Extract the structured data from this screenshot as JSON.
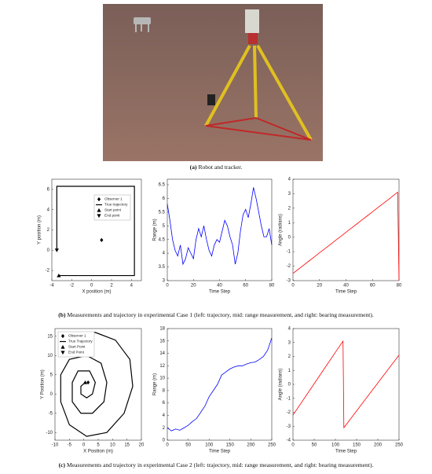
{
  "captions": [
    {
      "label": "(a)",
      "text": "Robot and tracker."
    },
    {
      "label": "(b)",
      "text": "Measurements and trajectory in experimental Case 1 (left: trajectory, mid: range measurement, and right: bearing measurement)."
    },
    {
      "label": "(c)",
      "text": "Measurements and trajectory in experimental Case 2 (left: trajectory, mid: range measurement, and right: bearing measurement)."
    }
  ],
  "chart_data": [
    {
      "type": "line",
      "xlabel": "X position (m)",
      "ylabel": "Y position (m)",
      "xlim": [
        -4,
        5
      ],
      "xticks": [
        -4,
        -2,
        0,
        2,
        4
      ],
      "ylim": [
        -3,
        7
      ],
      "yticks": [
        -2,
        0,
        2,
        4,
        6
      ],
      "legend": "upper right",
      "series": [
        {
          "name": "Observer 1",
          "color": "#000000",
          "marker": "diamond",
          "x": [
            1
          ],
          "values": [
            1
          ]
        },
        {
          "name": "True trajectory",
          "color": "#000000",
          "x": [
            -3.3,
            4.3,
            4.3,
            -3.5,
            -3.5
          ],
          "values": [
            -2.5,
            -2.5,
            6.3,
            6.3,
            0
          ]
        },
        {
          "name": "Start point",
          "color": "#000000",
          "marker": "triangle-up",
          "x": [
            -3.3
          ],
          "values": [
            -2.5
          ]
        },
        {
          "name": "End point",
          "color": "#000000",
          "marker": "triangle-down",
          "x": [
            -3.5
          ],
          "values": [
            0
          ]
        }
      ]
    },
    {
      "type": "line",
      "xlabel": "Time Step",
      "ylabel": "Range (m)",
      "color": "#0000ff",
      "xlim": [
        0,
        80
      ],
      "xticks": [
        0,
        20,
        40,
        60,
        80
      ],
      "ylim": [
        3,
        6.7
      ],
      "yticks": [
        3,
        3.5,
        4,
        4.5,
        5,
        5.5,
        6,
        6.5
      ],
      "x": [
        0,
        2,
        4,
        6,
        8,
        10,
        12,
        14,
        16,
        18,
        20,
        22,
        24,
        26,
        28,
        30,
        32,
        34,
        36,
        38,
        40,
        42,
        44,
        46,
        48,
        50,
        52,
        54,
        56,
        58,
        60,
        62,
        64,
        66,
        68,
        70,
        72,
        74,
        76,
        78,
        80
      ],
      "values": [
        5.8,
        5.2,
        4.5,
        4.1,
        3.9,
        4.3,
        3.6,
        3.8,
        4.2,
        4.0,
        3.8,
        4.5,
        4.9,
        4.6,
        5.0,
        4.5,
        4.1,
        3.9,
        4.3,
        4.5,
        4.4,
        4.8,
        5.2,
        5.0,
        4.6,
        4.3,
        3.6,
        4.0,
        4.8,
        5.4,
        5.6,
        5.3,
        5.8,
        6.4,
        6.0,
        5.5,
        5.0,
        4.6,
        4.6,
        4.9,
        4.3
      ]
    },
    {
      "type": "line",
      "xlabel": "Time Step",
      "ylabel": "Angle (radians)",
      "color": "#ff0000",
      "xlim": [
        0,
        80
      ],
      "xticks": [
        0,
        20,
        40,
        60,
        80
      ],
      "ylim": [
        -3,
        4
      ],
      "yticks": [
        -3,
        -2,
        -1,
        0,
        1,
        2,
        3,
        4
      ],
      "x": [
        0,
        4,
        8,
        12,
        16,
        20,
        24,
        28,
        32,
        36,
        40,
        44,
        48,
        52,
        56,
        60,
        64,
        68,
        72,
        76,
        79,
        80
      ],
      "values": [
        -2.5,
        -2.22,
        -1.93,
        -1.65,
        -1.37,
        -1.08,
        -0.8,
        -0.52,
        -0.23,
        0.05,
        0.34,
        0.62,
        0.9,
        1.19,
        1.47,
        1.75,
        2.04,
        2.32,
        2.6,
        2.89,
        3.1,
        -3.0
      ]
    },
    {
      "type": "line",
      "xlabel": "X Position (m)",
      "ylabel": "Y Position (m)",
      "xlim": [
        -10,
        20
      ],
      "xticks": [
        -10,
        -5,
        0,
        5,
        10,
        15,
        20
      ],
      "ylim": [
        -12,
        17
      ],
      "yticks": [
        -10,
        -5,
        0,
        5,
        10,
        15
      ],
      "legend": "upper left",
      "series": [
        {
          "name": "Observer 1",
          "color": "#000000",
          "marker": "diamond",
          "x": [
            1.5
          ],
          "values": [
            3
          ]
        },
        {
          "name": "True Trajectory",
          "color": "#000000",
          "x": [
            0.5,
            -1,
            -1,
            1,
            3,
            4,
            2,
            -2,
            -4,
            -4,
            -1,
            3,
            7,
            8,
            6,
            1,
            -5,
            -8,
            -8,
            -5,
            1,
            8,
            14,
            17,
            16,
            11,
            4,
            -3,
            -8
          ],
          "values": [
            3,
            2,
            0,
            -1,
            0,
            3,
            6,
            6,
            3,
            -2,
            -5,
            -5,
            -2,
            3,
            8,
            10,
            9,
            5,
            -2,
            -8,
            -11,
            -10,
            -5,
            2,
            9,
            14,
            16,
            16,
            15
          ]
        },
        {
          "name": "Start Point",
          "color": "#000000",
          "marker": "triangle-up",
          "x": [
            0.5
          ],
          "values": [
            3
          ]
        },
        {
          "name": "End Point",
          "color": "#000000",
          "marker": "triangle-down",
          "x": [
            -8
          ],
          "values": [
            15
          ]
        }
      ]
    },
    {
      "type": "line",
      "xlabel": "Time Step",
      "ylabel": "Range (m)",
      "color": "#0000ff",
      "xlim": [
        0,
        250
      ],
      "xticks": [
        0,
        50,
        100,
        150,
        200,
        250
      ],
      "ylim": [
        0,
        18
      ],
      "yticks": [
        0,
        2,
        4,
        6,
        8,
        10,
        12,
        14,
        16,
        18
      ],
      "x": [
        0,
        10,
        20,
        30,
        40,
        50,
        60,
        70,
        80,
        90,
        100,
        110,
        120,
        130,
        140,
        150,
        160,
        170,
        180,
        190,
        200,
        210,
        220,
        230,
        240,
        250
      ],
      "values": [
        2,
        1.5,
        1.8,
        1.6,
        2,
        2.4,
        3,
        3.5,
        4.5,
        5.5,
        7,
        8,
        9,
        10.5,
        11,
        11.5,
        11.8,
        12,
        12,
        12.3,
        12.5,
        12.6,
        13,
        13.5,
        14.5,
        16.5
      ]
    },
    {
      "type": "line",
      "xlabel": "Time Step",
      "ylabel": "Angle (radians)",
      "color": "#ff0000",
      "xlim": [
        0,
        250
      ],
      "xticks": [
        0,
        50,
        100,
        150,
        200,
        250
      ],
      "ylim": [
        -4,
        4
      ],
      "yticks": [
        -4,
        -3,
        -2,
        -1,
        0,
        1,
        2,
        3,
        4
      ],
      "x": [
        0,
        20,
        40,
        60,
        80,
        100,
        118,
        120,
        140,
        160,
        180,
        200,
        220,
        240,
        250
      ],
      "values": [
        -2.2,
        -1.3,
        -0.4,
        0.5,
        1.4,
        2.3,
        3.1,
        -3.1,
        -2.3,
        -1.5,
        -0.7,
        0.1,
        0.9,
        1.7,
        2.1
      ]
    }
  ]
}
